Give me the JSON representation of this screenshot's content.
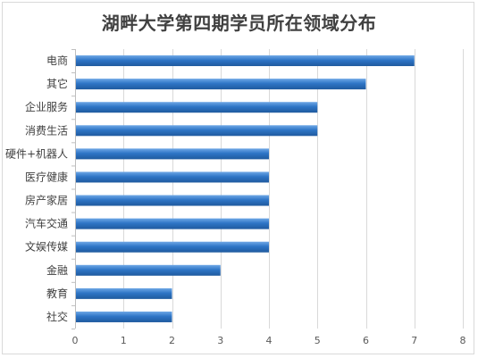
{
  "chart_data": {
    "type": "bar",
    "orientation": "horizontal",
    "title": "湖畔大学第四期学员所在领域分布",
    "categories": [
      "电商",
      "其它",
      "企业服务",
      "消费生活",
      "硬件+机器人",
      "医疗健康",
      "房产家居",
      "汽车交通",
      "文娱传媒",
      "金融",
      "教育",
      "社交"
    ],
    "values": [
      7,
      6,
      5,
      5,
      4,
      4,
      4,
      4,
      4,
      3,
      2,
      2
    ],
    "xlim": [
      0,
      8
    ],
    "x_ticks": [
      "0",
      "1",
      "2",
      "3",
      "4",
      "5",
      "6",
      "7",
      "8"
    ],
    "grid": true,
    "legend": "none",
    "bar_color": "#2E75C6",
    "bar_color_dark": "#1F5A9E",
    "bar_color_light": "#6FA8E6"
  }
}
